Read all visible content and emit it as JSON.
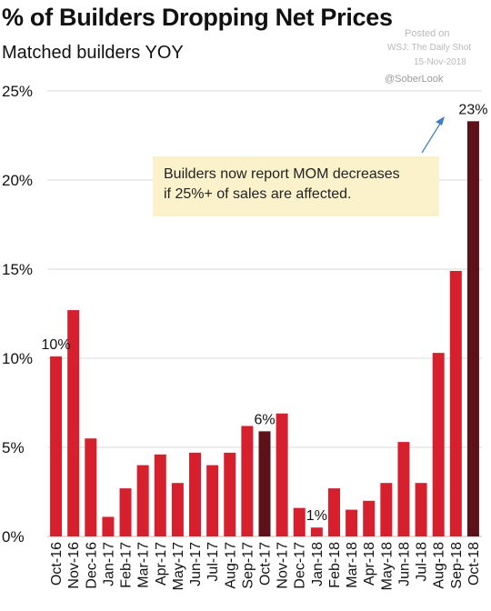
{
  "header": {
    "title": "% of Builders Dropping Net Prices",
    "subtitle": "Matched builders YOY"
  },
  "watermark": {
    "posted": "Posted on",
    "source": "WSJ: The Daily Shot",
    "date": "15-Nov-2018",
    "handle": "@SoberLook"
  },
  "annotation": {
    "line1": "Builders now report MOM decreases",
    "line2": "if 25%+ of sales are affected."
  },
  "chart_data": {
    "type": "bar",
    "title": "% of Builders Dropping Net Prices",
    "subtitle": "Matched builders YOY",
    "categories": [
      "Oct-16",
      "Nov-16",
      "Dec-16",
      "Jan-17",
      "Feb-17",
      "Mar-17",
      "Apr-17",
      "May-17",
      "Jun-17",
      "Jul-17",
      "Aug-17",
      "Sep-17",
      "Oct-17",
      "Nov-17",
      "Dec-17",
      "Jan-18",
      "Feb-18",
      "Mar-18",
      "Apr-18",
      "May-18",
      "Jun-18",
      "Jul-18",
      "Aug-18",
      "Sep-18",
      "Oct-18"
    ],
    "values": [
      10.1,
      12.7,
      5.5,
      1.1,
      2.7,
      4.0,
      4.6,
      3.0,
      4.7,
      4.0,
      4.7,
      6.2,
      5.9,
      6.9,
      1.6,
      0.5,
      2.7,
      1.5,
      2.0,
      3.0,
      5.3,
      3.0,
      10.3,
      14.9,
      23.3
    ],
    "highlight_indices": [
      12,
      24
    ],
    "data_labels": [
      {
        "index": 0,
        "text": "10%"
      },
      {
        "index": 12,
        "text": "6%"
      },
      {
        "index": 15,
        "text": "1%"
      },
      {
        "index": 24,
        "text": "23%"
      }
    ],
    "yticks": [
      0,
      5,
      10,
      15,
      20,
      25
    ],
    "ytick_labels": [
      "0%",
      "5%",
      "10%",
      "15%",
      "20%",
      "25%"
    ],
    "ylim": [
      0,
      25
    ],
    "xlabel": "",
    "ylabel": "",
    "grid": true,
    "colors": {
      "bar": "#d7202e",
      "highlight": "#5c1218",
      "grid": "#d9d9d9",
      "arrow": "#3f7ec0"
    }
  }
}
